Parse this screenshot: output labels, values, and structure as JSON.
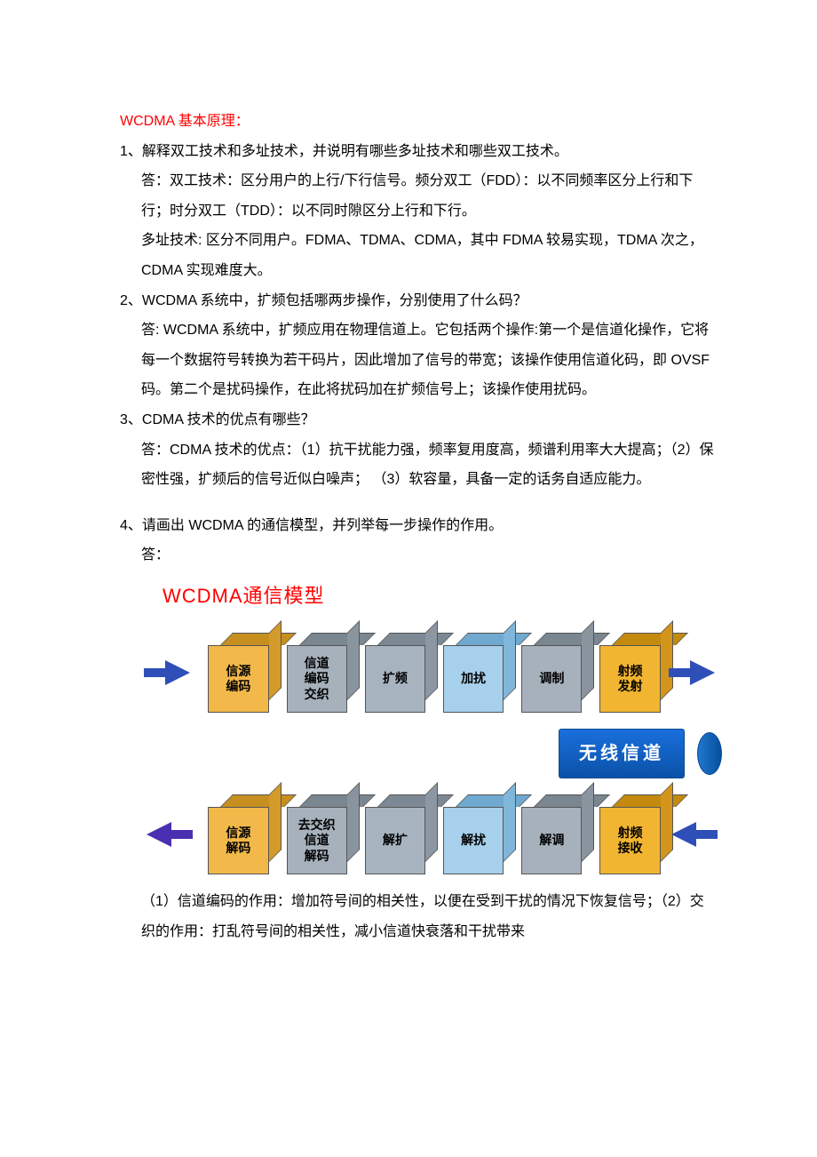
{
  "title": "WCDMA 基本原理：",
  "q1": {
    "question": "1、解释双工技术和多址技术，并说明有哪些多址技术和哪些双工技术。",
    "ans1": "答：双工技术：区分用户的上行/下行信号。频分双工（FDD）：以不同频率区分上行和下行；时分双工（TDD）：以不同时隙区分上行和下行。",
    "ans2": "多址技术: 区分不同用户。FDMA、TDMA、CDMA，其中 FDMA 较易实现，TDMA 次之，CDMA 实现难度大。"
  },
  "q2": {
    "question": "2、WCDMA 系统中，扩频包括哪两步操作，分别使用了什么码？",
    "ans": "答: WCDMA 系统中，扩频应用在物理信道上。它包括两个操作:第一个是信道化操作，它将每一个数据符号转换为若干码片，因此增加了信号的带宽；该操作使用信道化码，即 OVSF 码。第二个是扰码操作，在此将扰码加在扩频信号上；该操作使用扰码。"
  },
  "q3": {
    "question": "3、CDMA 技术的优点有哪些？",
    "ans": "答：CDMA 技术的优点：（1）抗干扰能力强，频率复用度高，频谱利用率大大提高；（2）保密性强，扩频后的信号近似白噪声；  （3）软容量，具备一定的话务自适应能力。"
  },
  "q4": {
    "question": "4、请画出 WCDMA 的通信模型，并列举每一步操作的作用。",
    "ans_label": "答：",
    "after": "（1）信道编码的作用：增加符号间的相关性，以便在受到干扰的情况下恢复信号；（2）交织的作用：打乱符号间的相关性，减小信道快衰落和干扰带来"
  },
  "diagram": {
    "title": "WCDMA通信模型",
    "arrow_color_blue": "#2f4fb8",
    "arrow_color_purple": "#4a2fb0",
    "channel_label": "无线信道",
    "channel_bg": "#0a5cb0",
    "channel_text_color": "#ffffff",
    "top_row": [
      {
        "label": "信源\n编码",
        "front": "#f2b84a",
        "top": "#c68f20",
        "side": "#d49a2a"
      },
      {
        "label": "信道\n编码\n交织",
        "front": "#a6b1bc",
        "top": "#7a8690",
        "side": "#8a949e"
      },
      {
        "label": "扩频",
        "front": "#a7b4c0",
        "top": "#7c8994",
        "side": "#8b97a2"
      },
      {
        "label": "加扰",
        "front": "#a7d0ec",
        "top": "#6fa9cf",
        "side": "#7fb6da"
      },
      {
        "label": "调制",
        "front": "#a6b1bc",
        "top": "#7a8690",
        "side": "#8a949e"
      },
      {
        "label": "射频\n发射",
        "front": "#f2b531",
        "top": "#c48a10",
        "side": "#d2951a"
      }
    ],
    "bottom_row": [
      {
        "label": "信源\n解码",
        "front": "#f2b84a",
        "top": "#c68f20",
        "side": "#d49a2a"
      },
      {
        "label": "去交织\n信道\n解码",
        "front": "#a6b1bc",
        "top": "#7a8690",
        "side": "#8a949e"
      },
      {
        "label": "解扩",
        "front": "#a7b4c0",
        "top": "#7c8994",
        "side": "#8b97a2"
      },
      {
        "label": "解扰",
        "front": "#a7d0ec",
        "top": "#6fa9cf",
        "side": "#7fb6da"
      },
      {
        "label": "解调",
        "front": "#a6b1bc",
        "top": "#7a8690",
        "side": "#8a949e"
      },
      {
        "label": "射频\n接收",
        "front": "#f2b531",
        "top": "#c48a10",
        "side": "#d2951a"
      }
    ]
  }
}
